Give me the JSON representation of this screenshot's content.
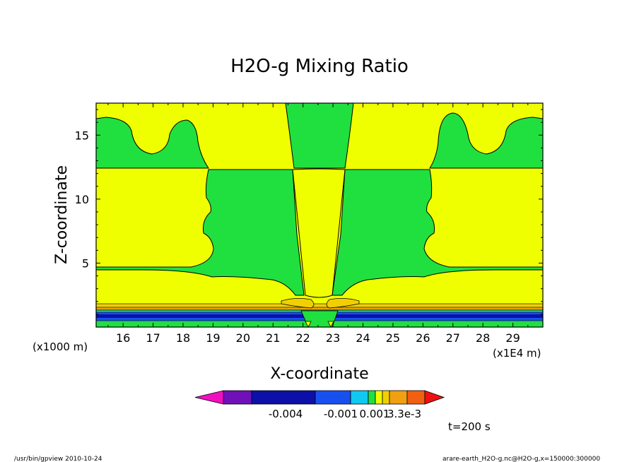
{
  "chart_data": {
    "type": "heatmap",
    "title": "H2O-g Mixing Ratio",
    "xlabel": "X-coordinate",
    "ylabel": "Z-coordinate",
    "x_unit_left": "(x1000 m)",
    "x_unit_right": "(x1E4 m)",
    "xlim": [
      15.1,
      30.0
    ],
    "ylim": [
      0,
      17.5
    ],
    "x_ticks": [
      16,
      17,
      18,
      19,
      20,
      21,
      22,
      23,
      24,
      25,
      26,
      27,
      28,
      29
    ],
    "y_ticks": [
      5,
      10,
      15
    ],
    "levels": [
      {
        "color": "#f010c0"
      },
      {
        "color": "#7010b8"
      },
      {
        "color": "#0c10a8"
      },
      {
        "color": "#1850f0"
      },
      {
        "color": "#10c8f0"
      },
      {
        "color": "#20e040"
      },
      {
        "color": "#f0ff00"
      },
      {
        "color": "#f0d000"
      },
      {
        "color": "#f0a010"
      },
      {
        "color": "#f06010"
      },
      {
        "color": "#f01010"
      }
    ],
    "colorbar_labels": [
      "-0.004",
      "-0.001",
      "0.001",
      "3.3e-3"
    ],
    "time_label": "t=200 s"
  },
  "footer": {
    "left": "/usr/bin/gpview   2010-10-24",
    "right": "arare-earth_H2O-g.nc@H2O-g,x=150000:300000"
  }
}
